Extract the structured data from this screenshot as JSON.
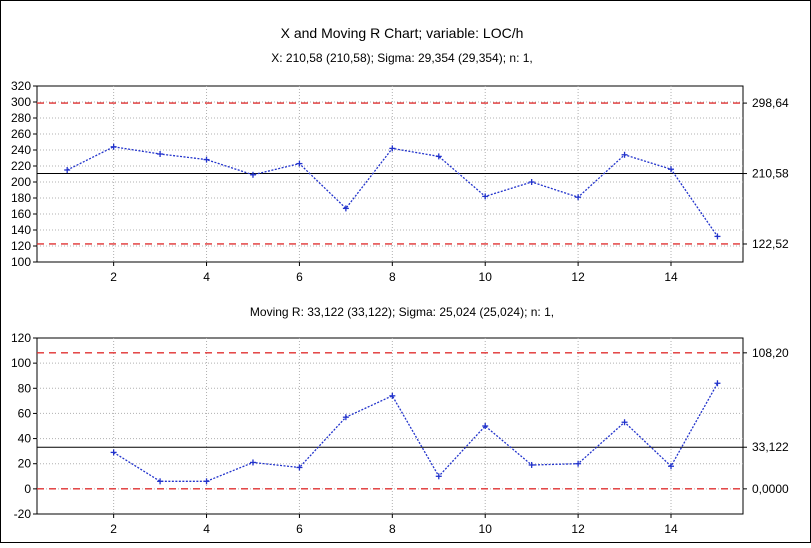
{
  "title": "X and Moving R Chart; variable:  LOC/h",
  "subtitle_x": "X: 210,58 (210,58); Sigma: 29,354 (29,354); n: 1,",
  "subtitle_r": "Moving R: 33,122 (33,122); Sigma: 25,024 (25,024); n: 1,",
  "colors": {
    "series": "#2233cc",
    "control_limit": "#e03030",
    "center_line": "#000000",
    "grid": "#b0b0b0",
    "frame": "#000000"
  },
  "chart_data": [
    {
      "type": "line",
      "name": "x-chart",
      "x": [
        1,
        2,
        3,
        4,
        5,
        6,
        7,
        8,
        9,
        10,
        11,
        12,
        13,
        14,
        15
      ],
      "y": [
        215,
        244,
        235,
        228,
        209,
        223,
        167,
        242,
        232,
        182,
        200,
        181,
        234,
        216,
        132
      ],
      "x_ticks": [
        "2",
        "4",
        "6",
        "8",
        "10",
        "12",
        "14"
      ],
      "y_ticks": [
        "100",
        "120",
        "140",
        "160",
        "180",
        "200",
        "220",
        "240",
        "260",
        "280",
        "300",
        "320"
      ],
      "xlim": [
        0.35,
        15.55
      ],
      "ylim": [
        100,
        320
      ],
      "ucl": 298.64,
      "center": 210.58,
      "lcl": 122.52,
      "ucl_label": "298,64",
      "center_label": "210,58",
      "lcl_label": "122,52",
      "grid": true
    },
    {
      "type": "line",
      "name": "moving-r-chart",
      "x": [
        2,
        3,
        4,
        5,
        6,
        7,
        8,
        9,
        10,
        11,
        12,
        13,
        14,
        15
      ],
      "y": [
        29,
        6,
        6,
        21,
        17,
        57,
        74,
        10,
        50,
        19,
        20,
        53,
        18,
        84
      ],
      "x_ticks": [
        "2",
        "4",
        "6",
        "8",
        "10",
        "12",
        "14"
      ],
      "y_ticks": [
        "-20",
        "0",
        "20",
        "40",
        "60",
        "80",
        "100",
        "120"
      ],
      "xlim": [
        0.35,
        15.55
      ],
      "ylim": [
        -20,
        120
      ],
      "ucl": 108.2,
      "center": 33.122,
      "lcl": 0,
      "ucl_label": "108,20",
      "center_label": "33,122",
      "lcl_label": "0,0000",
      "grid": true
    }
  ]
}
